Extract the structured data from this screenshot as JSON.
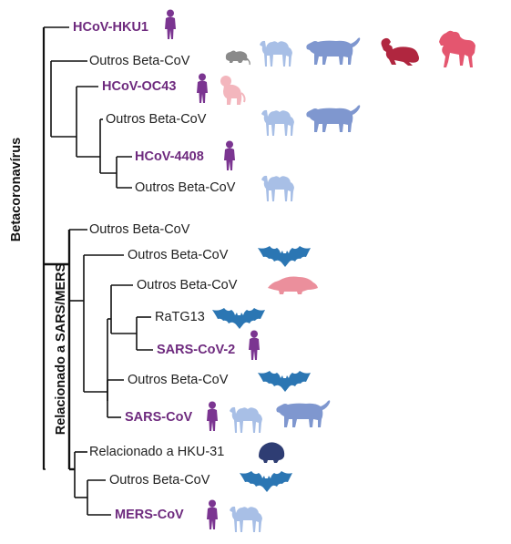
{
  "clade_labels": {
    "beta": "Betacoronavírus",
    "sars_mers": "Relacionado a SARS/MERS"
  },
  "taxa": [
    {
      "id": "hku1",
      "label": "HCoV-HKU1",
      "human": true,
      "hosts": [
        "human-icon"
      ]
    },
    {
      "id": "ob1",
      "label": "Outros Beta-CoV",
      "human": false,
      "hosts": [
        "rodent-icon",
        "camel-icon",
        "big-cat-icon",
        "rabbit-icon",
        "horse-icon"
      ]
    },
    {
      "id": "oc43",
      "label": "HCoV-OC43",
      "human": true,
      "hosts": [
        "human-icon",
        "monkey-icon"
      ]
    },
    {
      "id": "ob2",
      "label": "Outros Beta-CoV",
      "human": false,
      "hosts": [
        "camel-icon",
        "big-cat-icon"
      ]
    },
    {
      "id": "h4408",
      "label": "HCoV-4408",
      "human": true,
      "hosts": [
        "human-icon"
      ]
    },
    {
      "id": "ob3",
      "label": "Outros Beta-CoV",
      "human": false,
      "hosts": [
        "camel-icon"
      ]
    },
    {
      "id": "ob4",
      "label": "Outros Beta-CoV",
      "human": false,
      "hosts": []
    },
    {
      "id": "ob5",
      "label": "Outros Beta-CoV",
      "human": false,
      "hosts": [
        "bat-icon"
      ]
    },
    {
      "id": "ob6",
      "label": "Outros Beta-CoV",
      "human": false,
      "hosts": [
        "pangolin-icon"
      ]
    },
    {
      "id": "ratg13",
      "label": "RaTG13",
      "human": false,
      "hosts": [
        "bat-icon"
      ]
    },
    {
      "id": "sars2",
      "label": "SARS-CoV-2",
      "human": true,
      "hosts": [
        "human-icon"
      ]
    },
    {
      "id": "ob7",
      "label": "Outros Beta-CoV",
      "human": false,
      "hosts": [
        "bat-icon"
      ]
    },
    {
      "id": "sars",
      "label": "SARS-CoV",
      "human": true,
      "hosts": [
        "human-icon",
        "camel-icon",
        "big-cat-icon"
      ]
    },
    {
      "id": "hku31",
      "label": "Relacionado a HKU-31",
      "human": false,
      "hosts": [
        "hedgehog-icon"
      ]
    },
    {
      "id": "ob8",
      "label": "Outros Beta-CoV",
      "human": false,
      "hosts": [
        "bat-icon"
      ]
    },
    {
      "id": "mers",
      "label": "MERS-CoV",
      "human": true,
      "hosts": [
        "human-icon",
        "camel-icon"
      ]
    }
  ],
  "colors": {
    "human": "#7b3591",
    "label_human": "#6e2a7e",
    "camel": "#a8bfe6",
    "big_cat": "#7f97cf",
    "rabbit": "#b0263f",
    "horse": "#e4566f",
    "rodent": "#8a8a8a",
    "monkey": "#f3b6bd",
    "pangolin": "#eb8f9c",
    "bat": "#2b76b3",
    "hedgehog": "#2e3d73",
    "line": "#111111"
  }
}
